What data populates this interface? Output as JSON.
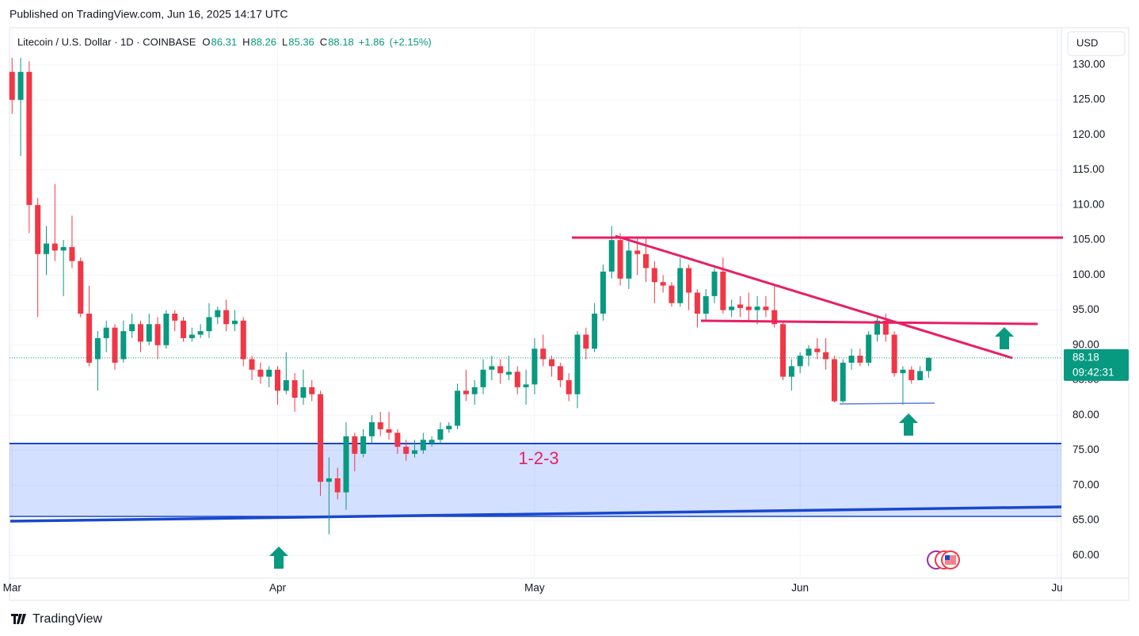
{
  "header": {
    "published": "Published on TradingView.com, Jun 16, 2025 14:17 UTC",
    "symbol": "Litecoin / U.S. Dollar · 1D · COINBASE",
    "o": "O",
    "open": "86.31",
    "h": "H",
    "high": "88.26",
    "l": "L",
    "low": "85.36",
    "c": "C",
    "close": "88.18",
    "change": "+1.86",
    "change_pct": "(+2.15%)"
  },
  "currency": "USD",
  "footer": "TradingView",
  "chart_data": {
    "type": "candlestick",
    "up_color": "#089981",
    "down_color": "#f23645",
    "xlim": [
      -0.3,
      122.5
    ],
    "xticks": [
      {
        "value": 0,
        "label": "Mar"
      },
      {
        "value": 31,
        "label": "Apr"
      },
      {
        "value": 61,
        "label": "May"
      },
      {
        "value": 92,
        "label": "Jun"
      },
      {
        "value": 122,
        "label": "Ju"
      }
    ],
    "ylim": [
      56.75,
      135.3
    ],
    "yticks": [
      {
        "value": 60,
        "label": "60.00"
      },
      {
        "value": 65,
        "label": "65.00"
      },
      {
        "value": 70,
        "label": "70.00"
      },
      {
        "value": 75,
        "label": "75.00"
      },
      {
        "value": 80,
        "label": "80.00"
      },
      {
        "value": 85,
        "label": "85.00"
      },
      {
        "value": 90,
        "label": "90.00"
      },
      {
        "value": 95,
        "label": "95.00"
      },
      {
        "value": 100,
        "label": "100.00"
      },
      {
        "value": 105,
        "label": "105.00"
      },
      {
        "value": 110,
        "label": "110.00"
      },
      {
        "value": 115,
        "label": "115.00"
      },
      {
        "value": 120,
        "label": "120.00"
      },
      {
        "value": 125,
        "label": "125.00"
      },
      {
        "value": 130,
        "label": "130.00"
      }
    ],
    "last_price": 88.18,
    "last_price_label": "88.18",
    "countdown": "09:42:31",
    "annotation": "1-2-3",
    "ohlc": [
      [
        129,
        131,
        123,
        125
      ],
      [
        125,
        131,
        117,
        129
      ],
      [
        129,
        130.5,
        106,
        110
      ],
      [
        110,
        111,
        94,
        103
      ],
      [
        103,
        107,
        100,
        104.5
      ],
      [
        104.5,
        113,
        102,
        103.5
      ],
      [
        103.5,
        105,
        97,
        104
      ],
      [
        104,
        108.5,
        101,
        102
      ],
      [
        102,
        102.5,
        94,
        94.5
      ],
      [
        94.5,
        98.5,
        87,
        87.5
      ],
      [
        88,
        92,
        83.5,
        91
      ],
      [
        91,
        93.5,
        89,
        92.5
      ],
      [
        92.5,
        93,
        86.5,
        87.5
      ],
      [
        88,
        93.5,
        87.5,
        92
      ],
      [
        92,
        94.5,
        91,
        93
      ],
      [
        93,
        93.5,
        89,
        90.5
      ],
      [
        90.5,
        94.5,
        90,
        93
      ],
      [
        93,
        94,
        88,
        90
      ],
      [
        90,
        95,
        89.5,
        94.5
      ],
      [
        94.5,
        95,
        92,
        93.5
      ],
      [
        93.5,
        94,
        90.5,
        91
      ],
      [
        91,
        92.5,
        90.5,
        91.5
      ],
      [
        91.5,
        93,
        91,
        92
      ],
      [
        92,
        96,
        91,
        94
      ],
      [
        94,
        95.5,
        93,
        95
      ],
      [
        95,
        96.5,
        92,
        93
      ],
      [
        93,
        95,
        92,
        93.5
      ],
      [
        93.5,
        94,
        87,
        88
      ],
      [
        88,
        88.5,
        85,
        86.5
      ],
      [
        86.5,
        87.5,
        84.5,
        85.5
      ],
      [
        85.5,
        87,
        84,
        86.5
      ],
      [
        86.5,
        87,
        81.5,
        83.5
      ],
      [
        83.5,
        89,
        83,
        85
      ],
      [
        85,
        86,
        80.5,
        82.5
      ],
      [
        82.5,
        86.5,
        81.5,
        84
      ],
      [
        84,
        85,
        82,
        83
      ],
      [
        83,
        83.5,
        68.5,
        70.5
      ],
      [
        70.5,
        74,
        63,
        71
      ],
      [
        71,
        72.5,
        68,
        69
      ],
      [
        69,
        79,
        66.5,
        77
      ],
      [
        77,
        77.5,
        72,
        74.5
      ],
      [
        74.5,
        78,
        74,
        77
      ],
      [
        77,
        80,
        76,
        79
      ],
      [
        79,
        80.5,
        77,
        78
      ],
      [
        78,
        80.5,
        76.5,
        77.5
      ],
      [
        77.5,
        78,
        74.5,
        75.5
      ],
      [
        75.5,
        76.5,
        73.5,
        74.5
      ],
      [
        74.5,
        76.5,
        74,
        75
      ],
      [
        75,
        77.5,
        74.5,
        76.5
      ],
      [
        76,
        77,
        75.5,
        76.5
      ],
      [
        76.5,
        79,
        76,
        78
      ],
      [
        78,
        79,
        77.5,
        78.5
      ],
      [
        78.5,
        84.5,
        78,
        83.5
      ],
      [
        83.5,
        86.5,
        82,
        83
      ],
      [
        83,
        85,
        81.5,
        84
      ],
      [
        84,
        88,
        83,
        86.5
      ],
      [
        86.5,
        88.5,
        85,
        87
      ],
      [
        87,
        88,
        84.5,
        86
      ],
      [
        85.8,
        88.5,
        85,
        86.2
      ],
      [
        86.2,
        87,
        83,
        84
      ],
      [
        84,
        86.5,
        81.5,
        84.4
      ],
      [
        84.4,
        91,
        83,
        89.5
      ],
      [
        89.5,
        91.5,
        87,
        88
      ],
      [
        88,
        88.5,
        85.5,
        87
      ],
      [
        87,
        87.5,
        84,
        85
      ],
      [
        85,
        86,
        82,
        83
      ],
      [
        83,
        92,
        81,
        91.5
      ],
      [
        91.5,
        92.5,
        88,
        89.5
      ],
      [
        89.5,
        96,
        89,
        94.5
      ],
      [
        94.5,
        101.5,
        93.5,
        100.5
      ],
      [
        100.5,
        107,
        99.5,
        105
      ],
      [
        105,
        106,
        98.5,
        99.5
      ],
      [
        99.5,
        105,
        98,
        103.5
      ],
      [
        103.5,
        105.5,
        100,
        103
      ],
      [
        103,
        105.5,
        99,
        101
      ],
      [
        101,
        102,
        96,
        99
      ],
      [
        99,
        100,
        97.5,
        98.5
      ],
      [
        98.5,
        99,
        95.5,
        96
      ],
      [
        96,
        102.5,
        95.5,
        101
      ],
      [
        101,
        101.5,
        95,
        97.5
      ],
      [
        97.5,
        98,
        92.5,
        94.5
      ],
      [
        94.5,
        98,
        93.5,
        97
      ],
      [
        97,
        101,
        96,
        100.5
      ],
      [
        100.5,
        102.5,
        94.5,
        95
      ],
      [
        95,
        96.5,
        94,
        95.5
      ],
      [
        95.8,
        97,
        94,
        95.3
      ],
      [
        95.5,
        97.5,
        93.5,
        95
      ],
      [
        95,
        97,
        93,
        95.5
      ],
      [
        95.5,
        97,
        94,
        95
      ],
      [
        95,
        98.5,
        92.5,
        93
      ],
      [
        93,
        93.5,
        85,
        85.5
      ],
      [
        85.5,
        88,
        83.5,
        87
      ],
      [
        87,
        89,
        86,
        88.5
      ],
      [
        88.5,
        90,
        87,
        89.5
      ],
      [
        89.5,
        91,
        88,
        89
      ],
      [
        89,
        91,
        86.5,
        88
      ],
      [
        88,
        88.5,
        81.8,
        82
      ],
      [
        82,
        88,
        81.8,
        87.5
      ],
      [
        87.5,
        89.5,
        86.5,
        88.5
      ],
      [
        88.5,
        89.5,
        87,
        87.5
      ],
      [
        87.5,
        92,
        87,
        91.5
      ],
      [
        91.5,
        94,
        90.5,
        93.5
      ],
      [
        93.5,
        94.5,
        90.5,
        91.5
      ],
      [
        91.5,
        92,
        85.5,
        86
      ],
      [
        86,
        87,
        81.5,
        86.5
      ],
      [
        86.5,
        87,
        84.5,
        85
      ],
      [
        85,
        87,
        85,
        86.31
      ],
      [
        86.31,
        88.26,
        85.36,
        88.18
      ]
    ]
  }
}
